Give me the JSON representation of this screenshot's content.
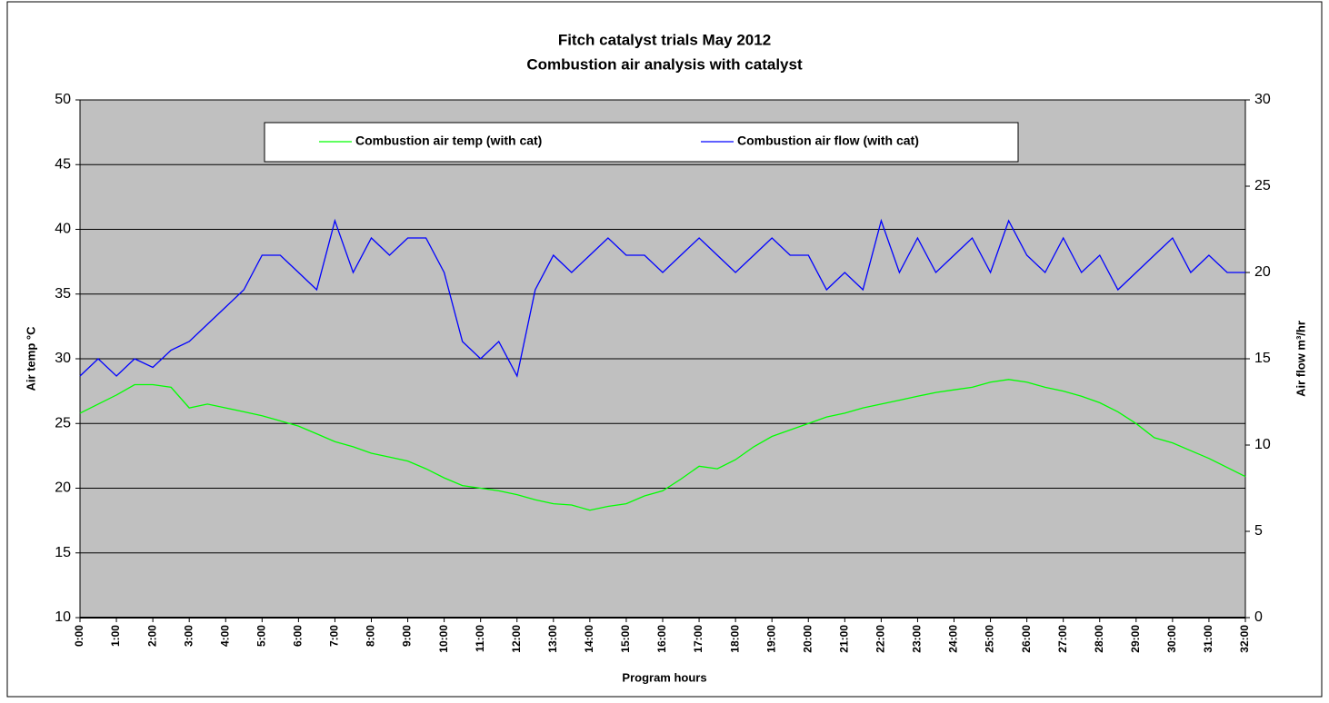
{
  "chart_data": {
    "type": "line",
    "title": "Fitch catalyst trials May 2012",
    "subtitle": "Combustion air analysis with catalyst",
    "x_label": "Program hours",
    "y_label": "Air temp °C",
    "y2_label": "Air flow m³/hr",
    "legend": "top",
    "grid": true,
    "background": "#c0c0c0",
    "xlim": [
      0,
      32
    ],
    "xticks": [
      {
        "value": 0,
        "label": "0:00"
      },
      {
        "value": 1,
        "label": "1:00"
      },
      {
        "value": 2,
        "label": "2:00"
      },
      {
        "value": 3,
        "label": "3:00"
      },
      {
        "value": 4,
        "label": "4:00"
      },
      {
        "value": 5,
        "label": "5:00"
      },
      {
        "value": 6,
        "label": "6:00"
      },
      {
        "value": 7,
        "label": "7:00"
      },
      {
        "value": 8,
        "label": "8:00"
      },
      {
        "value": 9,
        "label": "9:00"
      },
      {
        "value": 10,
        "label": "10:00"
      },
      {
        "value": 11,
        "label": "11:00"
      },
      {
        "value": 12,
        "label": "12:00"
      },
      {
        "value": 13,
        "label": "13:00"
      },
      {
        "value": 14,
        "label": "14:00"
      },
      {
        "value": 15,
        "label": "15:00"
      },
      {
        "value": 16,
        "label": "16:00"
      },
      {
        "value": 17,
        "label": "17:00"
      },
      {
        "value": 18,
        "label": "18:00"
      },
      {
        "value": 19,
        "label": "19:00"
      },
      {
        "value": 20,
        "label": "20:00"
      },
      {
        "value": 21,
        "label": "21:00"
      },
      {
        "value": 22,
        "label": "22:00"
      },
      {
        "value": 23,
        "label": "23:00"
      },
      {
        "value": 24,
        "label": "24:00"
      },
      {
        "value": 25,
        "label": "25:00"
      },
      {
        "value": 26,
        "label": "26:00"
      },
      {
        "value": 27,
        "label": "27:00"
      },
      {
        "value": 28,
        "label": "28:00"
      },
      {
        "value": 29,
        "label": "29:00"
      },
      {
        "value": 30,
        "label": "30:00"
      },
      {
        "value": 31,
        "label": "31:00"
      },
      {
        "value": 32,
        "label": "32:00"
      }
    ],
    "ylim": [
      10,
      50
    ],
    "yticks": [
      10,
      15,
      20,
      25,
      30,
      35,
      40,
      45,
      50
    ],
    "y2lim": [
      0,
      30
    ],
    "y2ticks": [
      0,
      5,
      10,
      15,
      20,
      25,
      30
    ],
    "x": [
      0,
      0.5,
      1,
      1.5,
      2,
      2.5,
      3,
      3.5,
      4,
      4.5,
      5,
      5.5,
      6,
      6.5,
      7,
      7.5,
      8,
      8.5,
      9,
      9.5,
      10,
      10.5,
      11,
      11.5,
      12,
      12.5,
      13,
      13.5,
      14,
      14.5,
      15,
      15.5,
      16,
      16.5,
      17,
      17.5,
      18,
      18.5,
      19,
      19.5,
      20,
      20.5,
      21,
      21.5,
      22,
      22.5,
      23,
      23.5,
      24,
      24.5,
      25,
      25.5,
      26,
      26.5,
      27,
      27.5,
      28,
      28.5,
      29,
      29.5,
      30,
      30.5,
      31,
      31.5,
      32
    ],
    "series": [
      {
        "name": "Combustion air temp (with cat)",
        "color": "#00ff00",
        "values": [
          25.8,
          26.5,
          27.2,
          28,
          28,
          27.8,
          26.2,
          26.5,
          26.2,
          25.9,
          25.6,
          25.2,
          24.8,
          24.2,
          23.6,
          23.2,
          22.7,
          22.4,
          22.1,
          21.5,
          20.8,
          20.2,
          20,
          19.8,
          19.5,
          19.1,
          18.8,
          18.7,
          18.3,
          18.6,
          18.8,
          19.4,
          19.8,
          20.7,
          21.7,
          21.5,
          22.2,
          23.2,
          24,
          24.5,
          25,
          25.5,
          25.8,
          26.2,
          26.5,
          26.8,
          27.1,
          27.4,
          27.6,
          27.8,
          28.2,
          28.4,
          28.2,
          27.8,
          27.5,
          27.1,
          26.6,
          25.9,
          25,
          23.9,
          23.5,
          22.9,
          22.3,
          21.6,
          20.9
        ]
      },
      {
        "name": "Combustion air flow (with cat)",
        "color": "#0000ff",
        "axis": "y2",
        "values": [
          14,
          15,
          14,
          15,
          14.5,
          15.5,
          16,
          17,
          18,
          19,
          21,
          21,
          20,
          19,
          23,
          20,
          22,
          21,
          22,
          22,
          20,
          16,
          15,
          16,
          14,
          19,
          21,
          20,
          21,
          22,
          21,
          21,
          20,
          21,
          22,
          21,
          20,
          21,
          22,
          21,
          21,
          19,
          20,
          19,
          23,
          20,
          22,
          20,
          21,
          22,
          20,
          23,
          21,
          20,
          22,
          20,
          21,
          19,
          20,
          21,
          22,
          20,
          21,
          20,
          20
        ]
      }
    ]
  }
}
